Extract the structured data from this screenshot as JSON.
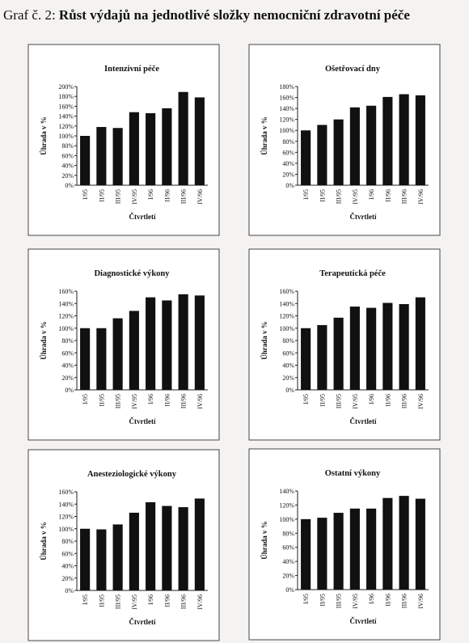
{
  "heading": {
    "label": "Graf č. 2:",
    "title": "Růst výdajů na jednotlivé složky nemocniční zdravotní péče"
  },
  "chart_data": [
    {
      "type": "bar",
      "title": "Intenzivní péče",
      "x_label": "Čtvrtletí",
      "y_label": "Úhrada v %",
      "color": "#111111",
      "categories": [
        "I/95",
        "II/95",
        "III/95",
        "IV/95",
        "I/96",
        "II/96",
        "III/96",
        "IV/96"
      ],
      "values": [
        100,
        118,
        116,
        148,
        146,
        156,
        189,
        178
      ],
      "ylim": [
        0,
        200
      ],
      "yticks": [
        {
          "value": 0,
          "label": "0%"
        },
        {
          "value": 20,
          "label": "20%"
        },
        {
          "value": 40,
          "label": "40%"
        },
        {
          "value": 60,
          "label": "60%"
        },
        {
          "value": 80,
          "label": "80%"
        },
        {
          "value": 100,
          "label": "100%"
        },
        {
          "value": 120,
          "label": "120%"
        },
        {
          "value": 140,
          "label": "140%"
        },
        {
          "value": 160,
          "label": "160%"
        },
        {
          "value": 180,
          "label": "180%"
        },
        {
          "value": 200,
          "label": "200%"
        }
      ]
    },
    {
      "type": "bar",
      "title": "Ošetřovací dny",
      "x_label": "Čtvrtletí",
      "y_label": "Úhrada v %",
      "color": "#111111",
      "categories": [
        "I/95",
        "II/95",
        "III/95",
        "IV/95",
        "I/96",
        "II/96",
        "III/96",
        "IV/96"
      ],
      "values": [
        100,
        110,
        120,
        142,
        145,
        161,
        166,
        164
      ],
      "ylim": [
        0,
        180
      ],
      "yticks": [
        {
          "value": 0,
          "label": "0%"
        },
        {
          "value": 20,
          "label": "20%"
        },
        {
          "value": 40,
          "label": "40%"
        },
        {
          "value": 60,
          "label": "60%"
        },
        {
          "value": 80,
          "label": "80%"
        },
        {
          "value": 100,
          "label": "100%"
        },
        {
          "value": 120,
          "label": "120%"
        },
        {
          "value": 140,
          "label": "140%"
        },
        {
          "value": 160,
          "label": "160%"
        },
        {
          "value": 180,
          "label": "180%"
        }
      ]
    },
    {
      "type": "bar",
      "title": "Diagnostické výkony",
      "x_label": "Čtvrtletí",
      "y_label": "Úhrada v %",
      "color": "#111111",
      "categories": [
        "I/95",
        "II/95",
        "III/95",
        "IV/95",
        "I/96",
        "II/96",
        "III/96",
        "IV/96"
      ],
      "values": [
        100,
        100,
        116,
        128,
        150,
        145,
        155,
        153
      ],
      "ylim": [
        0,
        160
      ],
      "yticks": [
        {
          "value": 0,
          "label": "0%"
        },
        {
          "value": 20,
          "label": "20%"
        },
        {
          "value": 40,
          "label": "40%"
        },
        {
          "value": 60,
          "label": "60%"
        },
        {
          "value": 80,
          "label": "80%"
        },
        {
          "value": 100,
          "label": "100%"
        },
        {
          "value": 120,
          "label": "120%"
        },
        {
          "value": 140,
          "label": "140%"
        },
        {
          "value": 160,
          "label": "160%"
        }
      ]
    },
    {
      "type": "bar",
      "title": "Terapeutická péče",
      "x_label": "Čtvrtletí",
      "y_label": "Úhrada v %",
      "color": "#111111",
      "categories": [
        "I/95",
        "II/95",
        "III/95",
        "IV/95",
        "I/96",
        "II/96",
        "III/96",
        "IV/96"
      ],
      "values": [
        100,
        105,
        117,
        135,
        133,
        141,
        139,
        150
      ],
      "ylim": [
        0,
        160
      ],
      "yticks": [
        {
          "value": 0,
          "label": "0%"
        },
        {
          "value": 20,
          "label": "20%"
        },
        {
          "value": 40,
          "label": "40%"
        },
        {
          "value": 60,
          "label": "60%"
        },
        {
          "value": 80,
          "label": "80%"
        },
        {
          "value": 100,
          "label": "100%"
        },
        {
          "value": 120,
          "label": "120%"
        },
        {
          "value": 140,
          "label": "140%"
        },
        {
          "value": 160,
          "label": "160%"
        }
      ]
    },
    {
      "type": "bar",
      "title": "Anesteziologické výkony",
      "x_label": "Čtvrtletí",
      "y_label": "Úhrada v %",
      "color": "#111111",
      "categories": [
        "I/95",
        "II/95",
        "III/95",
        "IV/95",
        "I/96",
        "II/96",
        "III/96",
        "IV/96"
      ],
      "values": [
        100,
        99,
        107,
        126,
        143,
        137,
        135,
        149
      ],
      "ylim": [
        0,
        160
      ],
      "yticks": [
        {
          "value": 0,
          "label": "0%"
        },
        {
          "value": 20,
          "label": "20%"
        },
        {
          "value": 40,
          "label": "40%"
        },
        {
          "value": 60,
          "label": "60%"
        },
        {
          "value": 80,
          "label": "80%"
        },
        {
          "value": 100,
          "label": "100%"
        },
        {
          "value": 120,
          "label": "120%"
        },
        {
          "value": 140,
          "label": "140%"
        },
        {
          "value": 160,
          "label": "160%"
        }
      ]
    },
    {
      "type": "bar",
      "title": "Ostatní výkony",
      "x_label": "Čtvrtletí",
      "y_label": "Úhrada v %",
      "color": "#111111",
      "categories": [
        "I/95",
        "II/95",
        "III/95",
        "IV/95",
        "I/96",
        "II/96",
        "III/96",
        "IV/96"
      ],
      "values": [
        100,
        102,
        109,
        115,
        115,
        130,
        133,
        129
      ],
      "ylim": [
        0,
        140
      ],
      "yticks": [
        {
          "value": 0,
          "label": "0%"
        },
        {
          "value": 20,
          "label": "20%"
        },
        {
          "value": 40,
          "label": "40%"
        },
        {
          "value": 60,
          "label": "60%"
        },
        {
          "value": 80,
          "label": "80%"
        },
        {
          "value": 100,
          "label": "100%"
        },
        {
          "value": 120,
          "label": "120%"
        },
        {
          "value": 140,
          "label": "140%"
        }
      ]
    }
  ]
}
